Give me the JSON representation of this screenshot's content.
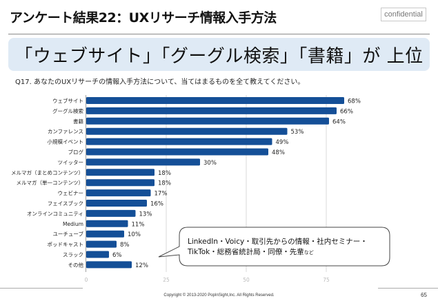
{
  "header": {
    "title": "アンケート結果22：UXリサーチ情報入手方法",
    "confidential_label": "confidential"
  },
  "banner": {
    "text": "「ウェブサイト」「グーグル検索」「書籍」が 上位"
  },
  "question": "Q17.  あなたのUXリサーチの情報入手方法について、当てはまるものを全て教えてください。",
  "callout": {
    "line1": "LinkedIn・Voicy・取引先からの情報・社内セミナー・",
    "line2": "TikTok・総務省統計局・同僚・先輩",
    "line2_suffix": "など"
  },
  "footer": {
    "copyright": "Copyright © 2013-2020  PopInSight,Inc.  All Rights Reserved.",
    "page_number": "65"
  },
  "colors": {
    "bar": "#144f97",
    "banner_bg": "#dfeaf5",
    "grid": "#d9d9d9"
  },
  "chart_data": {
    "type": "bar",
    "orientation": "horizontal",
    "title": "",
    "xlabel": "",
    "ylabel": "",
    "xlim": [
      0,
      75
    ],
    "xticks": [
      "0",
      "25",
      "50",
      "75"
    ],
    "xtick_values": [
      0,
      25,
      50,
      75
    ],
    "grid": true,
    "legend": "none",
    "categories": [
      "ウェブサイト",
      "グーグル検索",
      "書籍",
      "カンファレンス",
      "小規模イベント",
      "ブログ",
      "ツイッター",
      "メルマガ（まとめコンテンツ）",
      "メルマガ（単一コンテンツ）",
      "ウェビナー",
      "フェイスブック",
      "オンラインコミュニティ",
      "Medium",
      "ユーチューブ",
      "ポッドキャスト",
      "スラック",
      "その他"
    ],
    "values": [
      68,
      66,
      64,
      53,
      49,
      48,
      30,
      18,
      18,
      17,
      16,
      13,
      11,
      10,
      8,
      6,
      12
    ],
    "value_labels": [
      "68%",
      "66%",
      "64%",
      "53%",
      "49%",
      "48%",
      "30%",
      "18%",
      "18%",
      "17%",
      "16%",
      "13%",
      "11%",
      "10%",
      "8%",
      "6%",
      "12%"
    ],
    "unit": "%"
  }
}
